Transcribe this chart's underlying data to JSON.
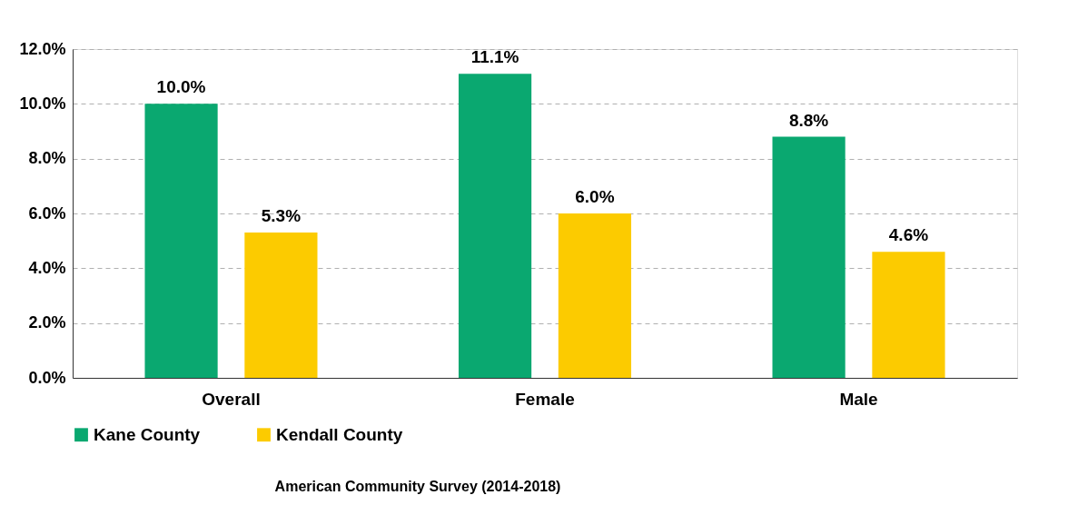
{
  "chart_data": {
    "type": "bar",
    "categories": [
      "Overall",
      "Female",
      "Male"
    ],
    "series": [
      {
        "name": "Kane County",
        "color": "#0aa870",
        "values": [
          10.0,
          11.1,
          8.8
        ],
        "value_labels": [
          "10.0%",
          "11.1%",
          "8.8%"
        ]
      },
      {
        "name": "Kendall County",
        "color": "#fccb00",
        "values": [
          5.3,
          6.0,
          4.6
        ],
        "value_labels": [
          "5.3%",
          "6.0%",
          "4.6%"
        ]
      }
    ],
    "ylim": [
      0,
      12
    ],
    "yticks": [
      {
        "value": 0,
        "label": "0.0%"
      },
      {
        "value": 2,
        "label": "2.0%"
      },
      {
        "value": 4,
        "label": "4.0%"
      },
      {
        "value": 6,
        "label": "6.0%"
      },
      {
        "value": 8,
        "label": "8.0%"
      },
      {
        "value": 10,
        "label": "10.0%"
      },
      {
        "value": 12,
        "label": "12.0%"
      }
    ],
    "grid": "y",
    "legend": "bottom",
    "annotations": [
      "American Community Survey (2014-2018)"
    ]
  }
}
